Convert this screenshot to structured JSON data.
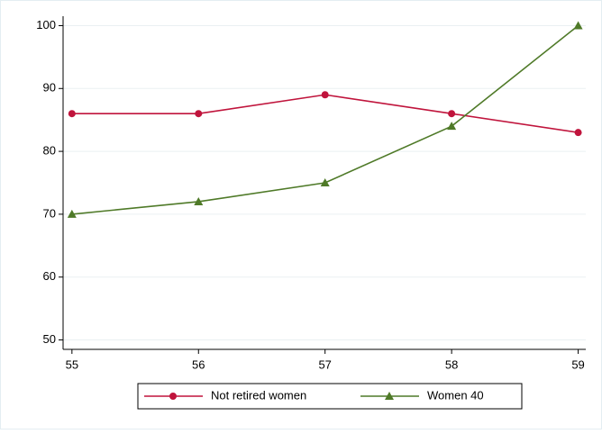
{
  "chart_data": {
    "type": "line",
    "x": [
      55,
      56,
      57,
      58,
      59
    ],
    "series": [
      {
        "name": "Not retired women",
        "color": "#c0143c",
        "marker": "circle",
        "values": [
          86,
          86,
          89,
          86,
          83
        ]
      },
      {
        "name": "Women 40",
        "color": "#4f7a28",
        "marker": "triangle",
        "values": [
          70,
          72,
          75,
          84,
          100
        ]
      }
    ],
    "xlim": [
      54.93,
      59.06
    ],
    "ylim": [
      48.5,
      101.5
    ],
    "xticks": [
      55,
      56,
      57,
      58,
      59
    ],
    "yticks": [
      50,
      60,
      70,
      80,
      90,
      100
    ],
    "grid": true,
    "legend": "bottom"
  }
}
